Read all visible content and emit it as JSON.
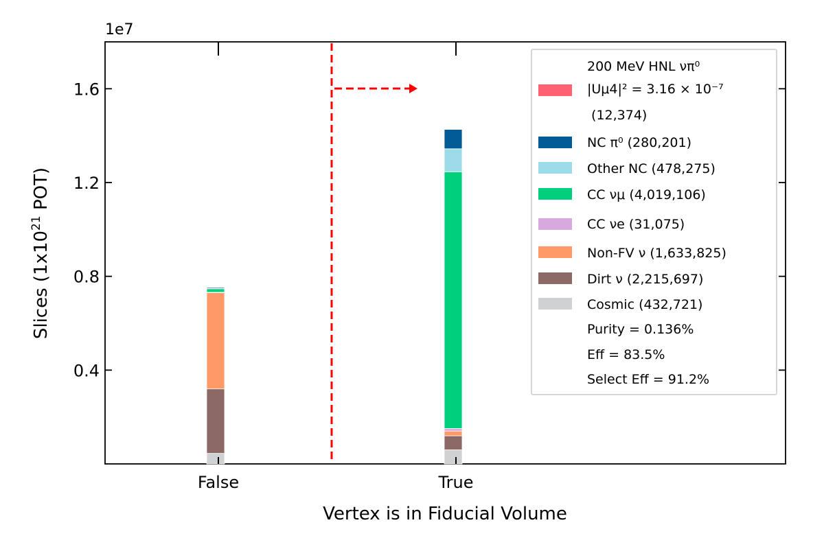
{
  "chart_data": {
    "type": "bar",
    "stacked": true,
    "categories": [
      "False",
      "True"
    ],
    "xlabel": "Vertex is in Fiducial Volume",
    "ylabel_parts": {
      "pre": "Slices (1x10",
      "sup": "21",
      "post": " POT)"
    },
    "offset_text": "1e7",
    "ylim": [
      0,
      18000000
    ],
    "y_ticks": [
      4000000,
      8000000,
      12000000,
      16000000
    ],
    "y_tick_labels": [
      "0.4",
      "0.8",
      "1.2",
      "1.6"
    ],
    "series": [
      {
        "name": "Cosmic (432,721)",
        "color": "#d0d1d3",
        "values": [
          450000,
          600000
        ]
      },
      {
        "name": "Dirt ν (2,215,697)",
        "color": "#8c6965",
        "values": [
          2750000,
          600000
        ]
      },
      {
        "name": "Non-FV ν (1,633,825)",
        "color": "#ff9966",
        "values": [
          4100000,
          200000
        ]
      },
      {
        "name": "CC νe (31,075)",
        "color": "#d8a8e0",
        "values": [
          20000,
          110000
        ]
      },
      {
        "name": "CC νμ (4,019,106)",
        "color": "#00d07d",
        "values": [
          150000,
          10950000
        ]
      },
      {
        "name": "Other NC (478,275)",
        "color": "#9cdce8",
        "values": [
          20000,
          980000
        ]
      },
      {
        "name": "NC π0 (280,201)",
        "color": "#005b96",
        "values": [
          40000,
          830000
        ]
      },
      {
        "name": "HNL signal",
        "color": "#ff6173",
        "values": [
          0,
          10000
        ]
      }
    ],
    "legend": {
      "position": "upper right",
      "signal_lines": [
        "200 MeV HNL νπ⁰",
        "|Uμ4|² = 3.16 × 10⁻⁷",
        " (12,374)"
      ],
      "entries": [
        {
          "label": "NC π⁰ (280,201)",
          "color": "#005b96"
        },
        {
          "label": "Other NC (478,275)",
          "color": "#9cdce8"
        },
        {
          "label": "CC νμ (4,019,106)",
          "color": "#00d07d"
        },
        {
          "label": "CC νe (31,075)",
          "color": "#d8a8e0"
        },
        {
          "label": "Non-FV ν (1,633,825)",
          "color": "#ff9966"
        },
        {
          "label": "Dirt ν (2,215,697)",
          "color": "#8c6965"
        },
        {
          "label": "Cosmic (432,721)",
          "color": "#d0d1d3"
        }
      ],
      "stats": [
        "Purity = 0.136%",
        "Eff = 83.5%",
        "Select Eff = 91.2%"
      ]
    },
    "cut_line": {
      "x_position": 0.5,
      "color": "#ff0000",
      "style": "dashed",
      "arrow_direction": "right",
      "arrow_y": 16000000
    }
  }
}
